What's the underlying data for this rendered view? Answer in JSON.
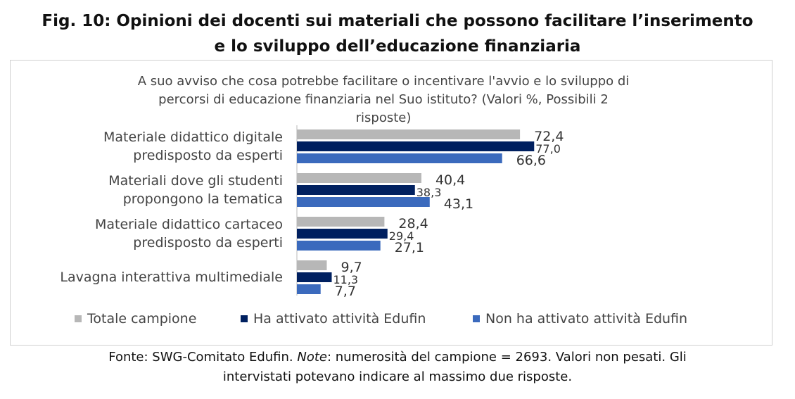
{
  "title_line1": "Fig. 10: Opinioni dei docenti sui materiali che possono facilitare l’inserimento",
  "title_line2": "e lo sviluppo dell’educazione finanziaria",
  "footer": {
    "source": "Fonte: SWG-Comitato Edufin. ",
    "note_label": "Note",
    "note_text": ": numerosità del campione = 2693. Valori non pesati. Gli",
    "line2": "intervistati potevano indicare al massimo due risposte."
  },
  "chart_data": {
    "type": "bar",
    "orientation": "horizontal",
    "title_lines": [
      "A suo avviso che cosa potrebbe facilitare o incentivare l'avvio e lo sviluppo di",
      "percorsi di educazione finanziaria nel Suo istituto? (Valori %, Possibili 2",
      "risposte)"
    ],
    "categories": [
      [
        "Materiale didattico digitale",
        "predisposto da esperti"
      ],
      [
        "Materiali dove gli studenti",
        "propongono la tematica"
      ],
      [
        "Materiale didattico cartaceo",
        "predisposto da esperti"
      ],
      [
        "Lavagna interattiva multimediale"
      ]
    ],
    "series": [
      {
        "name": "Totale campione",
        "color": "#b7b7b7",
        "values": [
          72.4,
          40.4,
          28.4,
          9.7
        ],
        "labels": [
          "72,4",
          "40,4",
          "28,4",
          "9,7"
        ]
      },
      {
        "name": "Ha attivato attività Edufin",
        "color": "#002060",
        "values": [
          77.0,
          38.3,
          29.4,
          11.3
        ],
        "labels": [
          "77,0",
          "38,3",
          "29,4",
          "11,3"
        ]
      },
      {
        "name": "Non ha attivato attività Edufin",
        "color": "#3b6abd",
        "values": [
          66.6,
          43.1,
          27.1,
          7.7
        ],
        "labels": [
          "66,6",
          "43,1",
          "27,1",
          "7,7"
        ]
      }
    ],
    "xlim": [
      0,
      100
    ],
    "grid": false,
    "legend_position": "bottom"
  }
}
